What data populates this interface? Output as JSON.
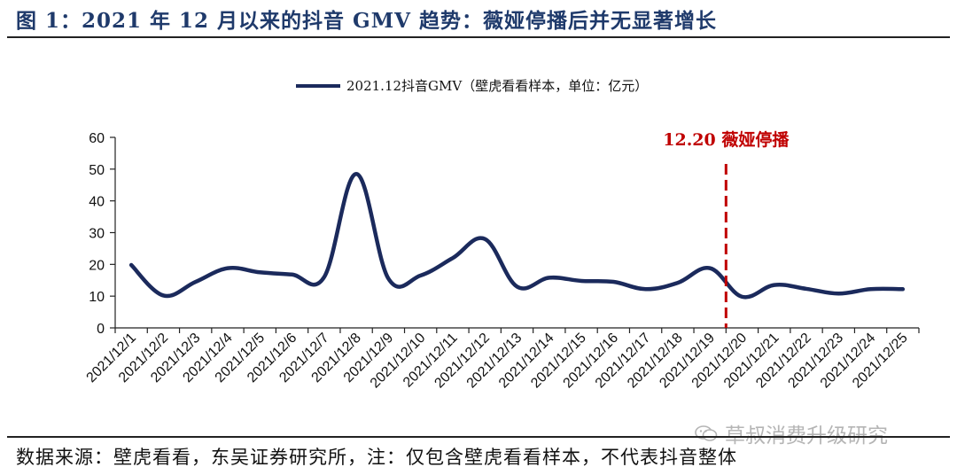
{
  "figure": {
    "title": "图 1：2021 年 12 月以来的抖音 GMV 趋势：薇娅停播后并无显著增长",
    "source": "数据来源：壁虎看看，东吴证券研究所，注：仅包含壁虎看看样本，不代表抖音整体",
    "watermark": "草叔消费升级研究"
  },
  "colors": {
    "series": "#1b2a5c",
    "annotation": "#c00000",
    "title": "#1f3a6b"
  },
  "chart_data": {
    "type": "line",
    "title": "",
    "xlabel": "",
    "ylabel": "",
    "ylim": [
      0,
      60
    ],
    "yticks": [
      0,
      10,
      20,
      30,
      40,
      50,
      60
    ],
    "grid": false,
    "legend_position": "top-center",
    "categories": [
      "2021/12/1",
      "2021/12/2",
      "2021/12/3",
      "2021/12/4",
      "2021/12/5",
      "2021/12/6",
      "2021/12/7",
      "2021/12/8",
      "2021/12/9",
      "2021/12/10",
      "2021/12/11",
      "2021/12/12",
      "2021/12/13",
      "2021/12/14",
      "2021/12/15",
      "2021/12/16",
      "2021/12/17",
      "2021/12/18",
      "2021/12/19",
      "2021/12/20",
      "2021/12/21",
      "2021/12/22",
      "2021/12/23",
      "2021/12/24",
      "2021/12/25"
    ],
    "series": [
      {
        "name": "2021.12抖音GMV（壁虎看看样本，单位：亿元）",
        "values": [
          19.8,
          10.2,
          14.5,
          18.8,
          17.5,
          16.8,
          16.0,
          48.5,
          15.5,
          16.5,
          22.0,
          28.0,
          13.0,
          15.8,
          14.8,
          14.5,
          12.2,
          14.2,
          18.8,
          9.8,
          13.5,
          12.3,
          10.8,
          12.2,
          12.2
        ]
      }
    ],
    "annotations": [
      {
        "text": "12.20 薇娅停播",
        "at_category": "2021/12/20"
      }
    ]
  }
}
